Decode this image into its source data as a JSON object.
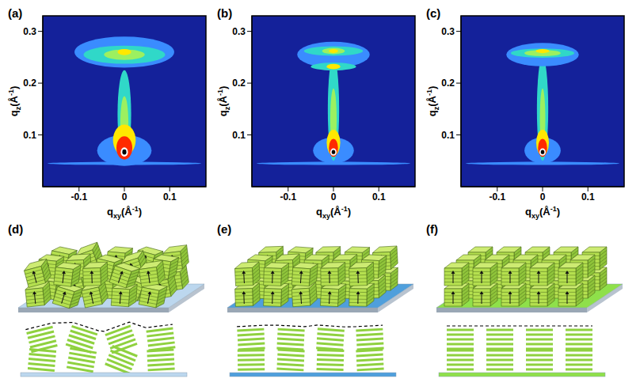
{
  "chart_data": [
    {
      "type": "heatmap",
      "label": "(a)",
      "x_label": {
        "base": "q",
        "sub": "xy",
        "unit": "(Å",
        "sup": "-1",
        "end": ")"
      },
      "y_label": {
        "base": "q",
        "sub": "z",
        "unit": "(Å",
        "sup": "-1",
        "end": ")"
      },
      "xlim": [
        -0.18,
        0.18
      ],
      "ylim": [
        0,
        0.33
      ],
      "xticks": [
        -0.1,
        0,
        0.1
      ],
      "yticks": [
        0.1,
        0.2,
        0.3
      ],
      "colorscale": [
        "#3a8cff",
        "#30d8c8",
        "#9cf060",
        "#ffe800",
        "#ff2a00",
        "#ffffff",
        "#000000"
      ],
      "spots": [
        [
          0,
          0.045,
          0.34,
          0.006,
          1
        ],
        [
          0,
          0.07,
          0.12,
          0.06,
          1
        ],
        [
          0,
          0.14,
          0.03,
          0.17,
          2
        ],
        [
          0,
          0.12,
          0.018,
          0.11,
          3
        ],
        [
          0,
          0.09,
          0.05,
          0.06,
          4
        ],
        [
          0,
          0.075,
          0.035,
          0.045,
          5
        ],
        [
          0,
          0.067,
          0.016,
          0.018,
          6
        ],
        [
          0,
          0.067,
          0.009,
          0.01,
          7
        ],
        [
          0,
          0.26,
          0.22,
          0.06,
          1
        ],
        [
          0,
          0.255,
          0.18,
          0.035,
          2
        ],
        [
          0,
          0.255,
          0.09,
          0.02,
          3
        ],
        [
          0,
          0.26,
          0.03,
          0.012,
          4
        ]
      ]
    },
    {
      "type": "heatmap",
      "label": "(b)",
      "x_label": {
        "base": "q",
        "sub": "xy",
        "unit": "(Å",
        "sup": "-1",
        "end": ")"
      },
      "y_label": {
        "base": "q",
        "sub": "z",
        "unit": "(Å",
        "sup": "-1",
        "end": ")"
      },
      "xlim": [
        -0.18,
        0.18
      ],
      "ylim": [
        0,
        0.33
      ],
      "xticks": [
        -0.1,
        0,
        0.1
      ],
      "yticks": [
        0.1,
        0.2,
        0.3
      ],
      "colorscale": [
        "#3a8cff",
        "#30d8c8",
        "#9cf060",
        "#ffe800",
        "#ff2a00",
        "#ffffff",
        "#000000"
      ],
      "spots": [
        [
          0,
          0.045,
          0.34,
          0.006,
          1
        ],
        [
          0,
          0.07,
          0.09,
          0.05,
          1
        ],
        [
          0,
          0.15,
          0.025,
          0.2,
          2
        ],
        [
          0,
          0.13,
          0.014,
          0.12,
          3
        ],
        [
          0,
          0.085,
          0.03,
          0.05,
          4
        ],
        [
          0,
          0.075,
          0.02,
          0.035,
          5
        ],
        [
          0,
          0.067,
          0.014,
          0.014,
          6
        ],
        [
          0,
          0.067,
          0.008,
          0.008,
          7
        ],
        [
          0,
          0.255,
          0.16,
          0.05,
          1
        ],
        [
          0,
          0.262,
          0.13,
          0.018,
          2
        ],
        [
          0,
          0.232,
          0.1,
          0.015,
          2
        ],
        [
          0,
          0.262,
          0.05,
          0.012,
          3
        ],
        [
          0,
          0.232,
          0.03,
          0.01,
          4
        ],
        [
          0,
          0.262,
          0.02,
          0.008,
          4
        ]
      ]
    },
    {
      "type": "heatmap",
      "label": "(c)",
      "x_label": {
        "base": "q",
        "sub": "xy",
        "unit": "(Å",
        "sup": "-1",
        "end": ")"
      },
      "y_label": {
        "base": "q",
        "sub": "z",
        "unit": "(Å",
        "sup": "-1",
        "end": ")"
      },
      "xlim": [
        -0.18,
        0.18
      ],
      "ylim": [
        0,
        0.33
      ],
      "xticks": [
        -0.1,
        0,
        0.1
      ],
      "yticks": [
        0.1,
        0.2,
        0.3
      ],
      "colorscale": [
        "#3a8cff",
        "#30d8c8",
        "#9cf060",
        "#ffe800",
        "#ff2a00",
        "#ffffff",
        "#000000"
      ],
      "spots": [
        [
          0,
          0.045,
          0.34,
          0.006,
          1
        ],
        [
          0,
          0.07,
          0.08,
          0.05,
          1
        ],
        [
          0,
          0.15,
          0.025,
          0.2,
          2
        ],
        [
          0,
          0.13,
          0.012,
          0.12,
          3
        ],
        [
          0,
          0.085,
          0.028,
          0.05,
          4
        ],
        [
          0,
          0.075,
          0.02,
          0.035,
          5
        ],
        [
          0,
          0.067,
          0.014,
          0.014,
          6
        ],
        [
          0,
          0.067,
          0.008,
          0.008,
          7
        ],
        [
          0,
          0.255,
          0.16,
          0.045,
          1
        ],
        [
          0,
          0.258,
          0.14,
          0.018,
          2
        ],
        [
          0,
          0.258,
          0.08,
          0.012,
          3
        ],
        [
          0,
          0.262,
          0.03,
          0.008,
          4
        ]
      ]
    }
  ],
  "schematics": [
    {
      "label": "(d)",
      "color": "#bcd7ee",
      "type": "random"
    },
    {
      "label": "(e)",
      "color": "#4f9fdc",
      "type": "tilted"
    },
    {
      "label": "(f)",
      "color": "#8fe04a",
      "type": "aligned"
    }
  ]
}
